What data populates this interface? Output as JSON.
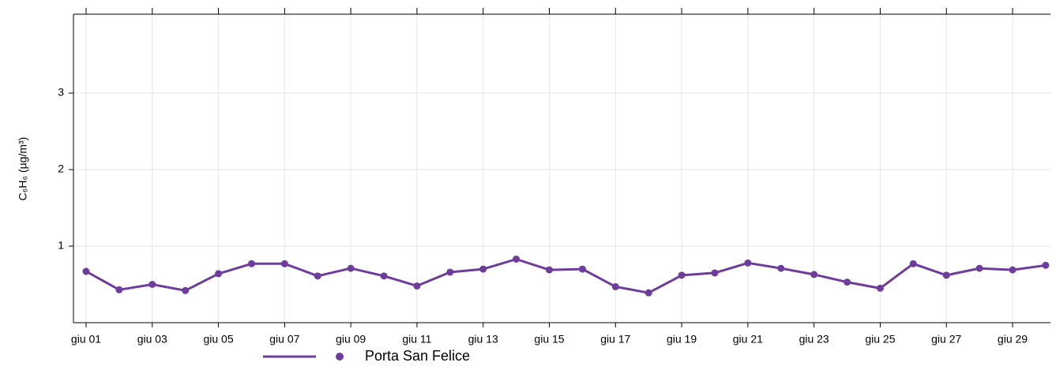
{
  "chart_data": {
    "type": "line",
    "y_label": "C₆H₆ (µg/m³)",
    "categories": [
      "giu 01",
      null,
      "giu 03",
      null,
      "giu 05",
      null,
      "giu 07",
      null,
      "giu 09",
      null,
      "giu 11",
      null,
      "giu 13",
      null,
      "giu 15",
      null,
      "giu 17",
      null,
      "giu 19",
      null,
      "giu 21",
      null,
      "giu 23",
      null,
      "giu 25",
      null,
      "giu 27",
      null,
      "giu 29",
      null
    ],
    "series": [
      {
        "name": "Porta San Felice",
        "color": "#6e3d9c",
        "values": [
          0.67,
          0.43,
          0.5,
          0.42,
          0.64,
          0.77,
          0.77,
          0.61,
          0.71,
          0.61,
          0.48,
          0.66,
          0.7,
          0.83,
          0.69,
          0.7,
          0.47,
          0.39,
          0.62,
          0.65,
          0.78,
          0.71,
          0.63,
          0.53,
          0.45,
          0.77,
          0.62,
          0.71,
          0.69,
          0.75
        ]
      }
    ],
    "ylim": [
      0,
      4
    ],
    "yticks": [
      1,
      2,
      3
    ],
    "grid": true,
    "legend": "bottom"
  }
}
